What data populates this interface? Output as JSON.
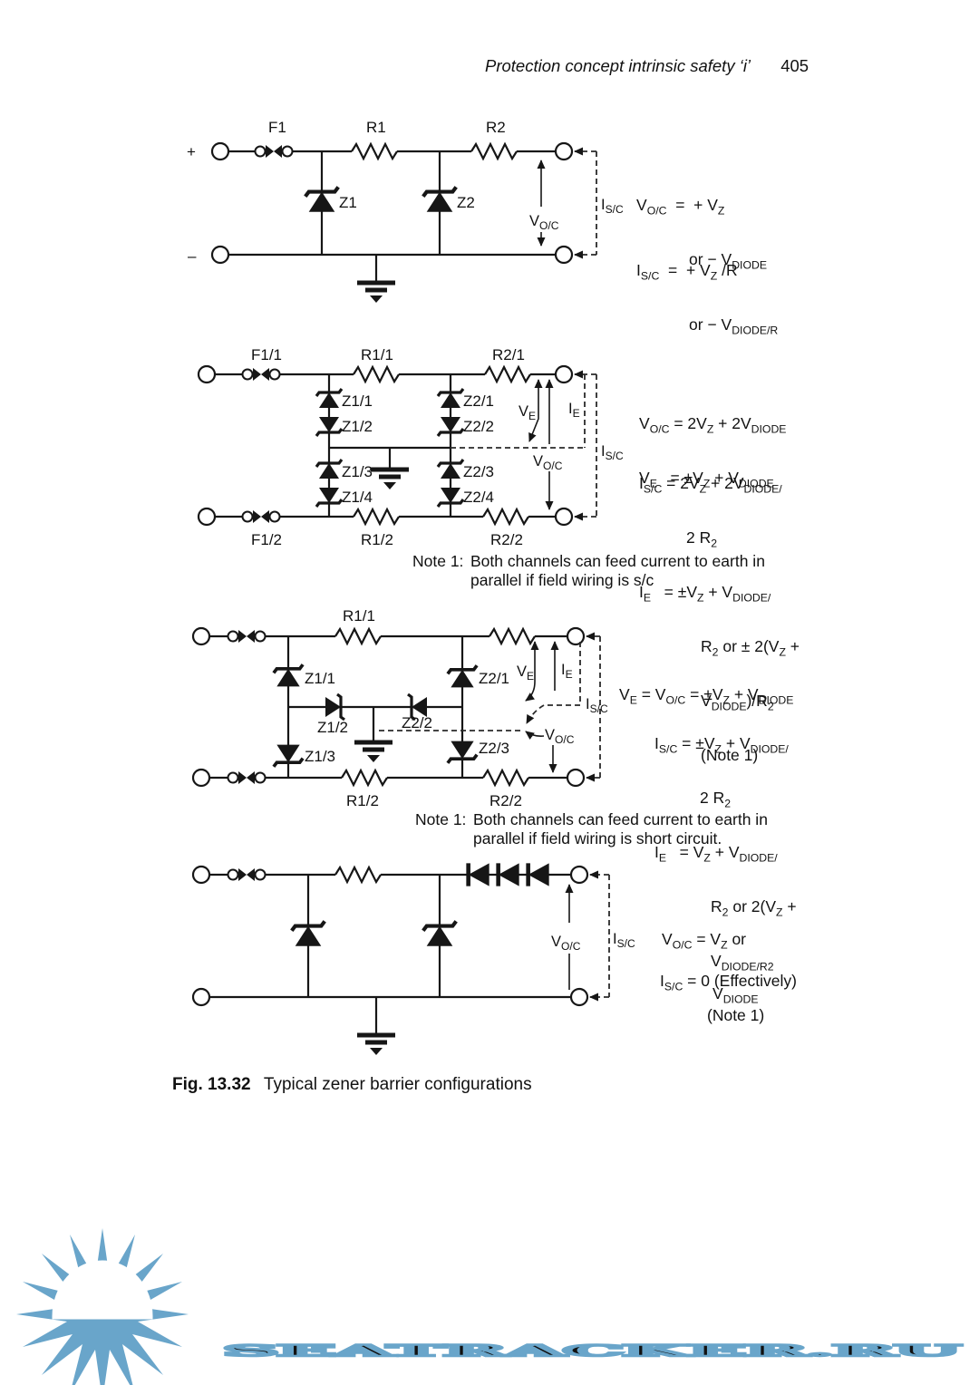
{
  "colors": {
    "ink": "#161616",
    "watermark_blue": "#69A5CA",
    "paper": "#ffffff"
  },
  "header": {
    "running_title": "Protection concept intrinsic safety ‘i’",
    "page_number": "405"
  },
  "circuit1": {
    "polarity_plus": "+",
    "polarity_minus": "–",
    "fuse": "F1",
    "r1": "R1",
    "r2": "R2",
    "z1": "Z1",
    "z2": "Z2",
    "voc": "V_{O/C}",
    "isc": "I_{S/C}",
    "eq": {
      "voc_line1": "V_{O/C}  =  + V_{Z}",
      "voc_line2": "or − V_{DIODE}",
      "isc_line1": "I_{S/C}  =  + V_{Z} /R",
      "isc_line2": "or − V_{DIODE/R}"
    }
  },
  "circuit2": {
    "f11": "F1/1",
    "f12": "F1/2",
    "r11": "R1/1",
    "r21": "R2/1",
    "r12": "R1/2",
    "r22": "R2/2",
    "z11": "Z1/1",
    "z12": "Z1/2",
    "z13": "Z1/3",
    "z14": "Z1/4",
    "z21": "Z2/1",
    "z22": "Z2/2",
    "z23": "Z2/3",
    "z24": "Z2/4",
    "ve": "V_{E}",
    "ie": "I_{E}",
    "voc": "V_{O/C}",
    "isc": "I_{S/C}",
    "eq": {
      "line1": "V_{O/C} = 2V_{Z} + 2V_{DIODE}",
      "line2": "V_{E}   = ±V_{Z} + V_{DIODE}",
      "line3": "I_{S/C} = 2V_{Z} + 2V_{DIODE/}",
      "line4": "2 R_{2}",
      "line5": "I_{E}   = ±V_{Z} + V_{DIODE/}",
      "line6": "R_{2} or ± 2(V_{Z} +",
      "line7": "V_{DIODE})/R_{2}",
      "line8": "(Note 1)"
    },
    "note": {
      "label": "Note 1:",
      "line1": "Both channels can feed current to earth in",
      "line2": "parallel if field wiring is s/c"
    }
  },
  "circuit3": {
    "r11": "R1/1",
    "r12": "R1/2",
    "r22": "R2/2",
    "z11": "Z1/1",
    "z12": "Z1/2",
    "z13": "Z1/3",
    "z21": "Z2/1",
    "z22": "Z2/2",
    "z23": "Z2/3",
    "ve": "V_{E}",
    "ie": "I_{E}",
    "voc": "V_{O/C}",
    "isc": "I_{S/C}",
    "eq": {
      "line1": "V_{E} = V_{O/C} = ±V_{Z} + V_{DIODE}",
      "line2": "I_{S/C} = ±V_{Z} + V_{DIODE/}",
      "line3": "2 R_{2}",
      "line4": "I_{E}   = V_{Z} + V_{DIODE/}",
      "line5": "R_{2} or 2(V_{Z} +",
      "line6": "V_{DIODE/R}_{2}",
      "line7": "(Note 1)"
    },
    "note": {
      "label": "Note 1:",
      "line1": "Both channels can feed current to earth in",
      "line2": "parallel if field wiring is short circuit."
    }
  },
  "circuit4": {
    "voc": "V_{O/C}",
    "isc": "I_{S/C}",
    "eq": {
      "line1": "V_{O/C} = V_{Z} or",
      "line2": "V_{DIODE}",
      "line3": "I_{S/C} = 0 (Effectively)"
    }
  },
  "caption": {
    "figure_label": "Fig. 13.32",
    "figure_title": "Typical zener barrier configurations"
  },
  "watermark": {
    "text": "SEATRACKER.RU"
  }
}
